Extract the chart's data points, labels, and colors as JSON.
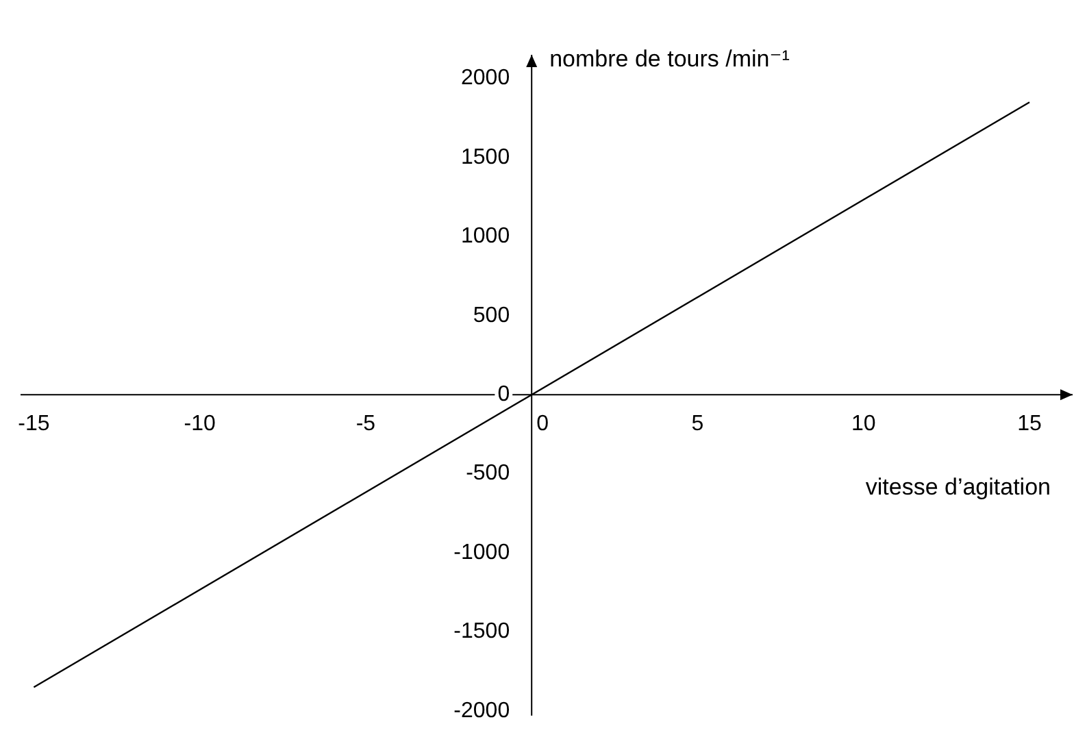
{
  "chart_data": {
    "type": "line",
    "xlabel": "vitesse d’agitation",
    "ylabel": "nombre de tours /min⁻¹",
    "x": [
      -15,
      15
    ],
    "series": [
      {
        "color": "#000000",
        "values": [
          -1850,
          1850
        ]
      }
    ],
    "xlim": [
      -15.4,
      16.3
    ],
    "ylim": [
      -2030,
      2150
    ],
    "xticks": [
      -15,
      -10,
      -5,
      0,
      5,
      10,
      15
    ],
    "yticks": [
      -2000,
      -1500,
      -1000,
      -500,
      0,
      500,
      1000,
      1500,
      2000
    ],
    "grid": false,
    "legend": false,
    "marker": "none",
    "line_style": "solid"
  }
}
